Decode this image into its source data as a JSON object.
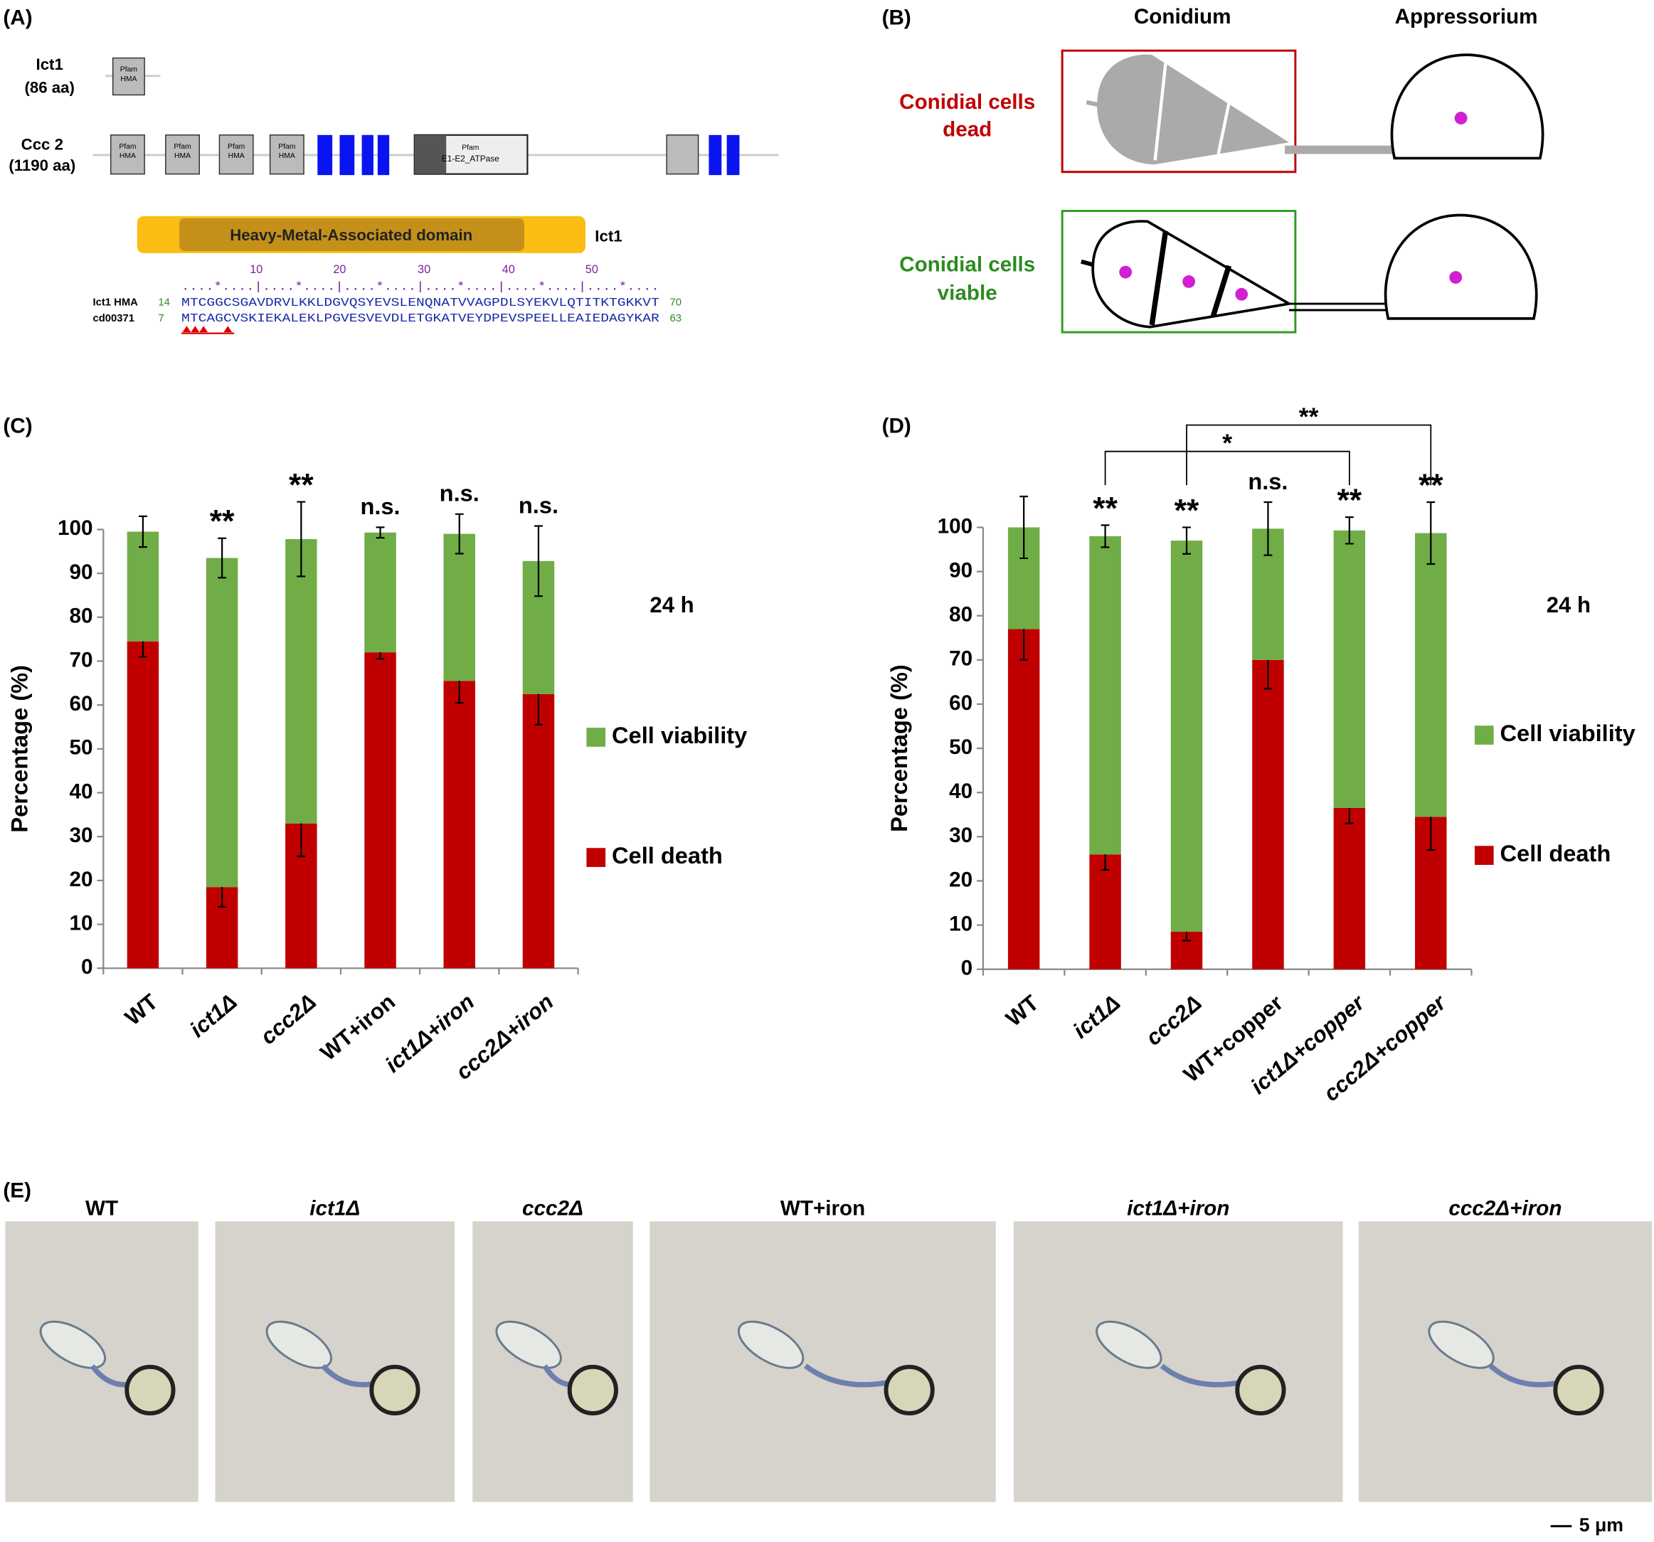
{
  "panel_labels": [
    "(A)",
    "(B)",
    "(C)",
    "(D)",
    "(E)"
  ],
  "panel_a": {
    "proteins": [
      {
        "name": "Ict1",
        "length": "(86 aa)"
      },
      {
        "name": "Ccc 2",
        "length": "(1190 aa)"
      }
    ],
    "pfam_hma": [
      "Pfam",
      "HMA"
    ],
    "pfam_atpase": [
      "Pfam",
      "E1-E2_ATPase"
    ],
    "domain_title": "Heavy-Metal-Associated domain",
    "domain_protein": "Ict1",
    "ruler_numbers": [
      "10",
      "20",
      "30",
      "40",
      "50"
    ],
    "ruler": "....*....|....*....|....*....|....*....|....*....|....*....",
    "alignment": [
      {
        "name": "Ict1 HMA",
        "start": "14",
        "sequence": "MTCGGCSGAVDRVLKKLDGVQSYEVSLENQNATVVAGPDLSYEKVLQTITKTGKKVT",
        "end": "70"
      },
      {
        "name": "cd00371",
        "start": "7",
        "sequence": "MTCAGCVSKIEKALEKLPGVESVEVDLETGKATVEYDPEVSPEELLEAIEDAGYKAR",
        "end": "63"
      }
    ]
  },
  "panel_b": {
    "headers": [
      "Conidium",
      "Appressorium"
    ],
    "dead_label": [
      "Conidial cells",
      "dead"
    ],
    "viable_label": [
      "Conidial cells",
      "viable"
    ]
  },
  "chart_data": [
    {
      "type": "stacked_bar",
      "ylabel": "Percentage (%)",
      "categories": [
        "WT",
        "ict1Δ",
        "ccc2Δ",
        "WT+iron",
        "ict1Δ+iron",
        "ccc2Δ+iron"
      ],
      "series": [
        {
          "name": "Cell death",
          "color": "#c00000",
          "values": [
            74.5,
            18.5,
            33,
            72,
            65.5,
            62.5
          ],
          "errors": [
            3.5,
            4.5,
            7.5,
            1.5,
            5,
            7
          ]
        },
        {
          "name": "Cell viability",
          "color": "#70ad47",
          "values": [
            25,
            75,
            64.8,
            27.3,
            33.5,
            30.3
          ],
          "errors": [
            3.5,
            4.5,
            8.5,
            1.2,
            4.5,
            8
          ]
        }
      ],
      "annotations": [
        null,
        "**",
        "**",
        "n.s.",
        "n.s.",
        "n.s."
      ],
      "note": "24 h",
      "ylim": [
        0,
        100
      ],
      "yticks": [
        0,
        10,
        20,
        30,
        40,
        50,
        60,
        70,
        80,
        90,
        100
      ]
    },
    {
      "type": "stacked_bar",
      "ylabel": "Percentage (%)",
      "categories": [
        "WT",
        "ict1Δ",
        "ccc2Δ",
        "WT+copper",
        "ict1Δ+copper",
        "ccc2Δ+copper"
      ],
      "series": [
        {
          "name": "Cell death",
          "color": "#c00000",
          "values": [
            77,
            26,
            8.5,
            70,
            36.5,
            34.5
          ],
          "errors": [
            7,
            3.5,
            2,
            6.5,
            3.5,
            7.5
          ]
        },
        {
          "name": "Cell viability",
          "color": "#70ad47",
          "values": [
            23,
            72,
            88.5,
            29.7,
            62.8,
            64.2
          ],
          "errors": [
            7,
            2.5,
            3,
            6,
            3,
            7
          ]
        }
      ],
      "annotations": [
        null,
        "**",
        "**",
        "n.s.",
        "**",
        "**"
      ],
      "comparisons": [
        {
          "between": [
            1,
            4
          ],
          "label": "*"
        },
        {
          "between": [
            2,
            5
          ],
          "label": "**"
        }
      ],
      "note": "24 h",
      "ylim": [
        0,
        100
      ],
      "yticks": [
        0,
        10,
        20,
        30,
        40,
        50,
        60,
        70,
        80,
        90,
        100
      ]
    }
  ],
  "panel_e": {
    "images": [
      "WT",
      "ict1Δ",
      "ccc2Δ",
      "WT+iron",
      "ict1Δ+iron",
      "ccc2Δ+iron"
    ],
    "scale_bar": "5 μm"
  }
}
